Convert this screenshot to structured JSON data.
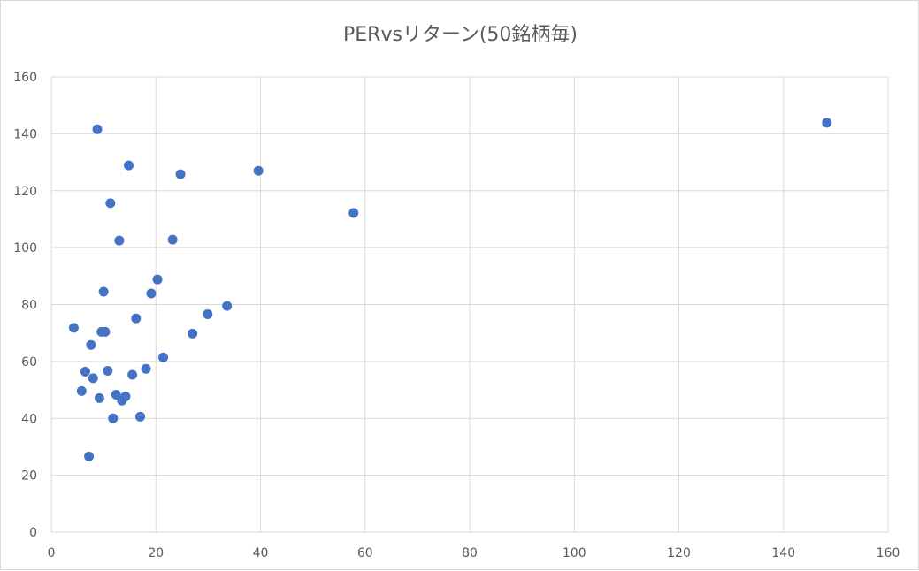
{
  "chart_data": {
    "type": "scatter",
    "title": "PERvsリターン(50銘柄毎)",
    "xlabel": "",
    "ylabel": "",
    "xlim": [
      0,
      160
    ],
    "ylim": [
      0,
      160
    ],
    "x_ticks": [
      0,
      20,
      40,
      60,
      80,
      100,
      120,
      140,
      160
    ],
    "y_ticks": [
      0,
      20,
      40,
      60,
      80,
      100,
      120,
      140,
      160
    ],
    "grid": true,
    "legend": "none",
    "colors": {
      "point": "#4472c4",
      "grid": "#d9d9d9",
      "text": "#595959"
    },
    "series": [
      {
        "points": [
          {
            "x": 4.3,
            "y": 71.8
          },
          {
            "x": 5.8,
            "y": 49.6
          },
          {
            "x": 6.5,
            "y": 56.4
          },
          {
            "x": 7.2,
            "y": 26.6
          },
          {
            "x": 7.6,
            "y": 65.8
          },
          {
            "x": 8.0,
            "y": 54.1
          },
          {
            "x": 8.8,
            "y": 141.6
          },
          {
            "x": 9.2,
            "y": 47.1
          },
          {
            "x": 9.6,
            "y": 70.4
          },
          {
            "x": 10.0,
            "y": 84.5
          },
          {
            "x": 10.3,
            "y": 70.4
          },
          {
            "x": 10.8,
            "y": 56.7
          },
          {
            "x": 11.3,
            "y": 115.6
          },
          {
            "x": 11.8,
            "y": 40.0
          },
          {
            "x": 12.4,
            "y": 48.3
          },
          {
            "x": 13.0,
            "y": 102.5
          },
          {
            "x": 13.5,
            "y": 46.2
          },
          {
            "x": 14.2,
            "y": 47.7
          },
          {
            "x": 14.8,
            "y": 128.9
          },
          {
            "x": 15.5,
            "y": 55.3
          },
          {
            "x": 16.2,
            "y": 75.1
          },
          {
            "x": 17.0,
            "y": 40.6
          },
          {
            "x": 18.1,
            "y": 57.4
          },
          {
            "x": 19.1,
            "y": 83.9
          },
          {
            "x": 20.3,
            "y": 88.8
          },
          {
            "x": 21.4,
            "y": 61.4
          },
          {
            "x": 23.2,
            "y": 102.8
          },
          {
            "x": 24.7,
            "y": 125.8
          },
          {
            "x": 27.0,
            "y": 69.8
          },
          {
            "x": 29.9,
            "y": 76.6
          },
          {
            "x": 33.6,
            "y": 79.5
          },
          {
            "x": 39.6,
            "y": 127.0
          },
          {
            "x": 57.8,
            "y": 112.2
          },
          {
            "x": 148.3,
            "y": 143.9
          }
        ]
      }
    ]
  }
}
